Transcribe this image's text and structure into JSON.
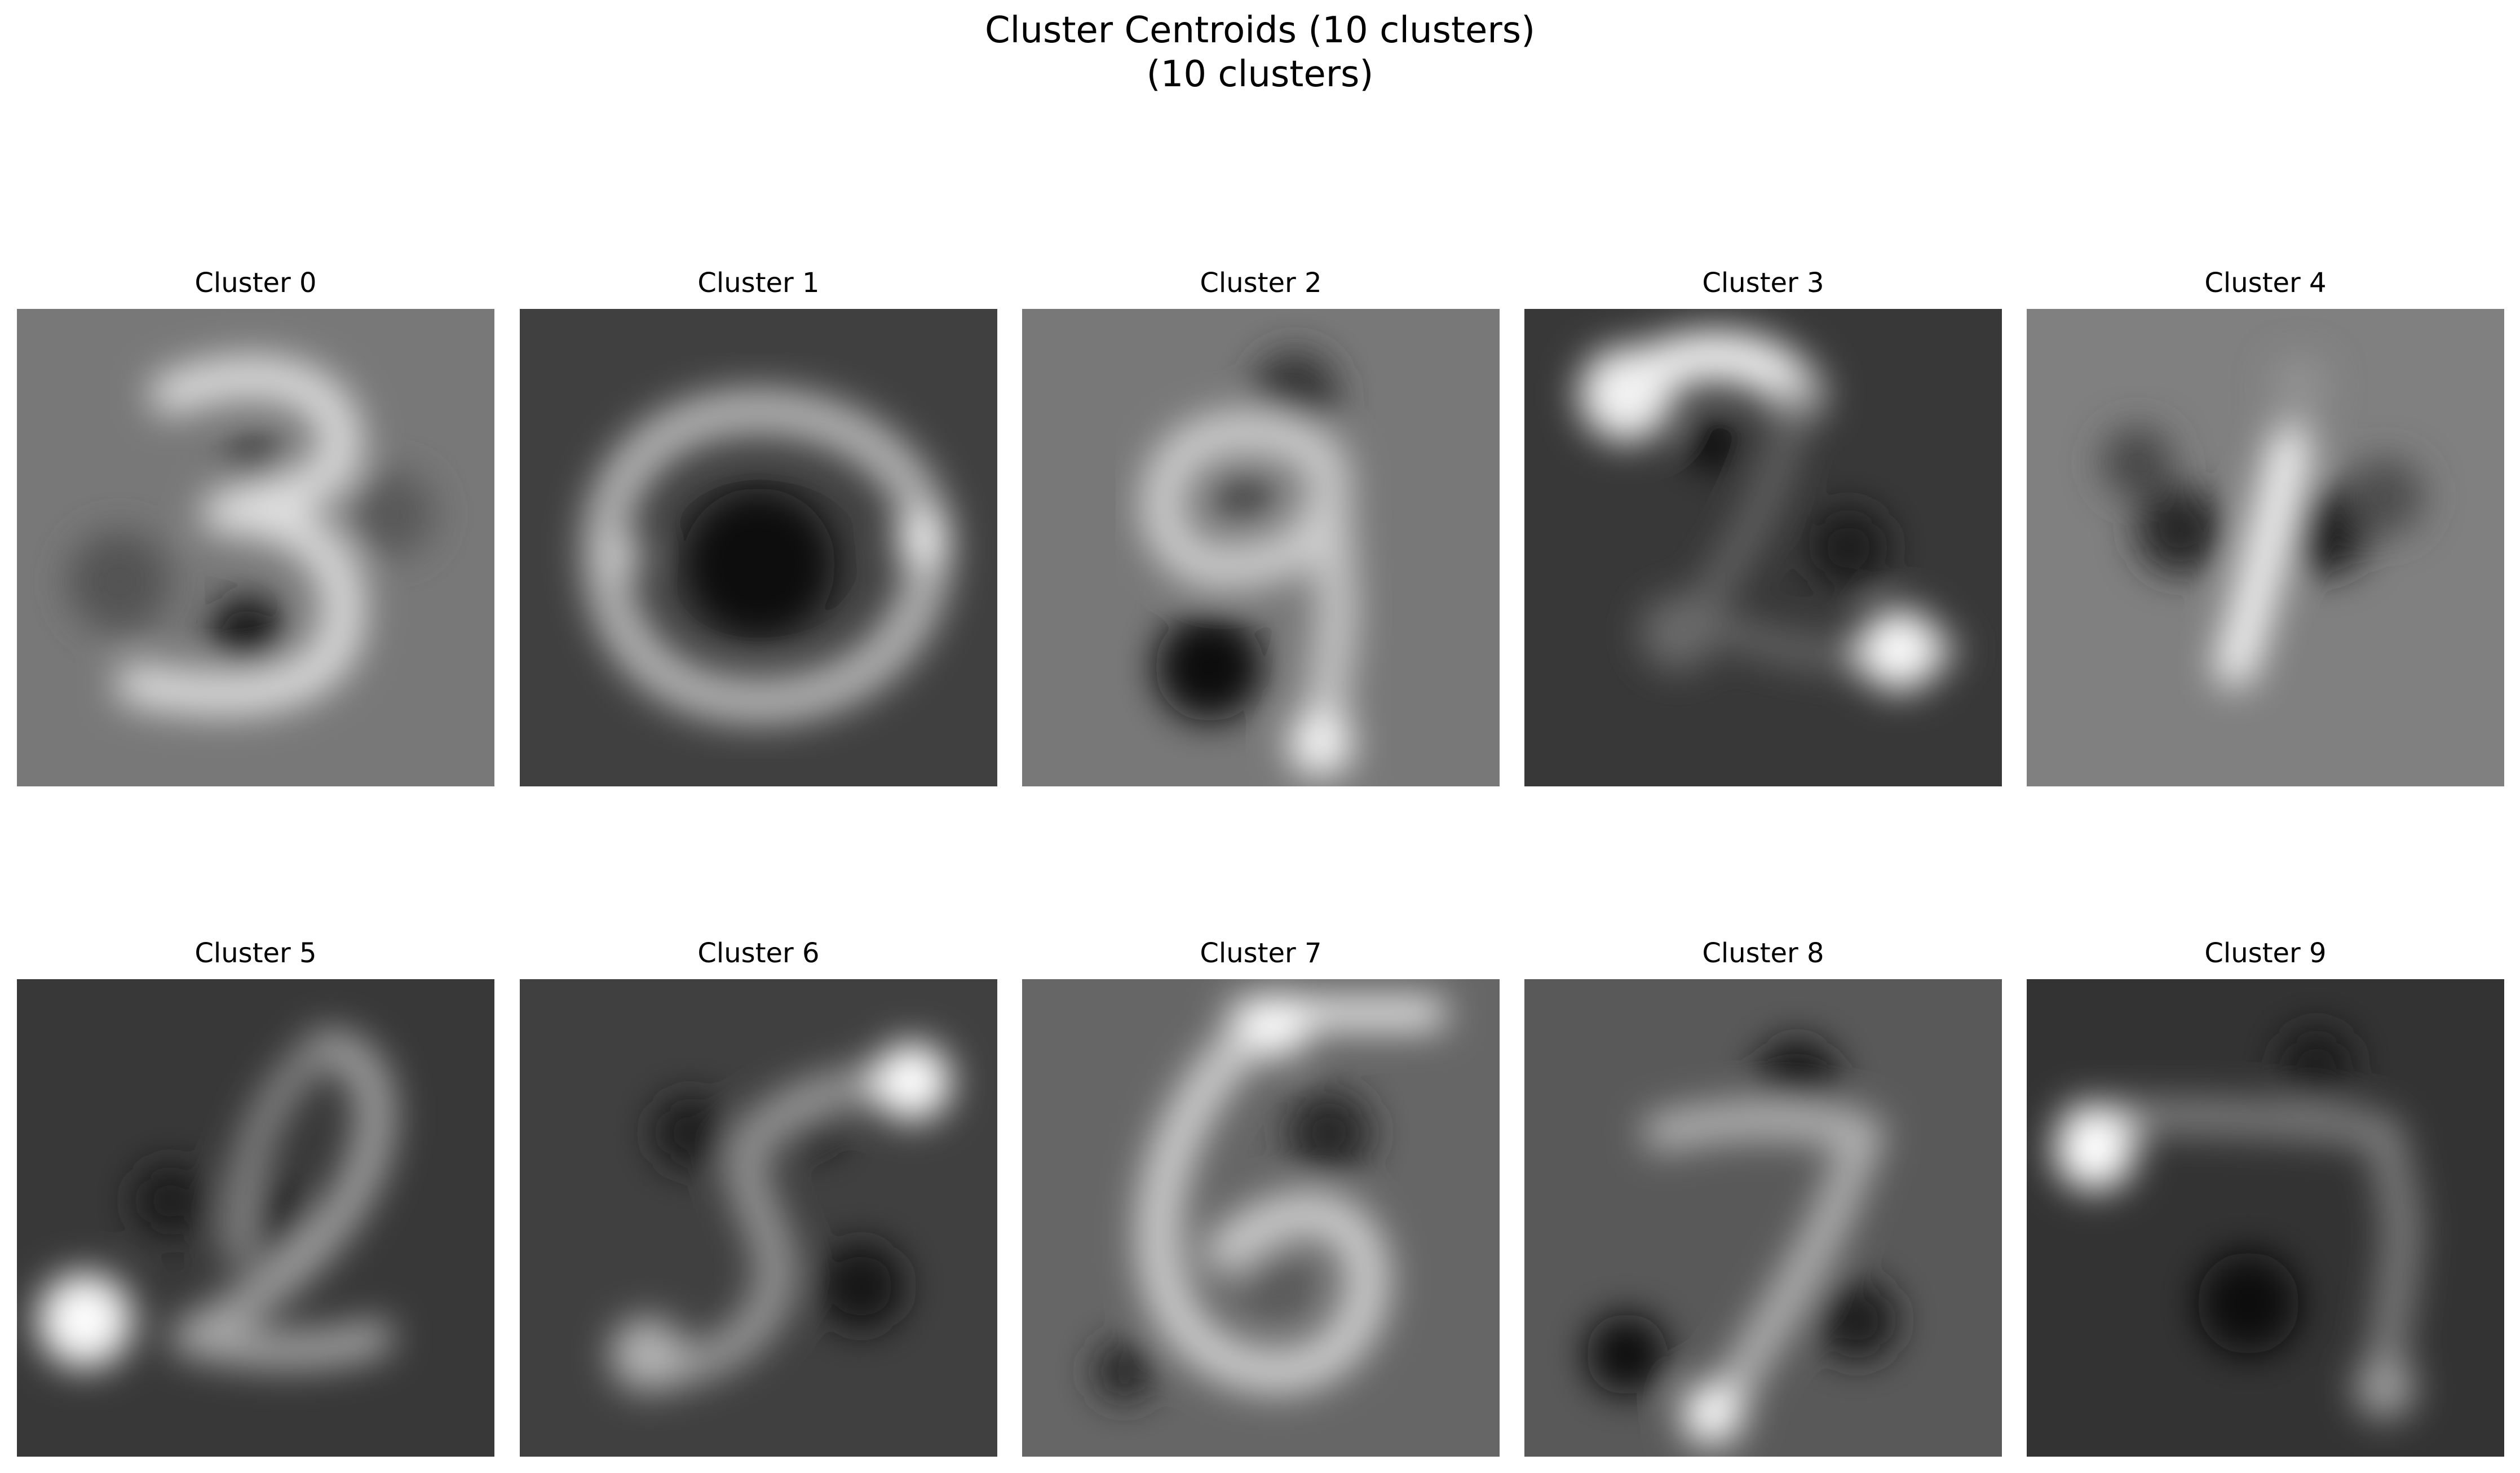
{
  "chart_data": {
    "type": "heatmap",
    "title": "Cluster Centroids (10 clusters)",
    "subtitle": "(10 clusters)",
    "colormap": "gray",
    "grid": false,
    "axes_visible": false,
    "layout": {
      "rows": 2,
      "cols": 5
    },
    "panels": [
      {
        "title": "Cluster 0",
        "background": 0.47,
        "digit": "3"
      },
      {
        "title": "Cluster 1",
        "background": 0.25,
        "digit": "0"
      },
      {
        "title": "Cluster 2",
        "background": 0.47,
        "digit": "9"
      },
      {
        "title": "Cluster 3",
        "background": 0.22,
        "digit": "2"
      },
      {
        "title": "Cluster 4",
        "background": 0.5,
        "digit": "1"
      },
      {
        "title": "Cluster 5",
        "background": 0.22,
        "digit": "2 (slanted)"
      },
      {
        "title": "Cluster 6",
        "background": 0.25,
        "digit": "5 (slanted)"
      },
      {
        "title": "Cluster 7",
        "background": 0.4,
        "digit": "6"
      },
      {
        "title": "Cluster 8",
        "background": 0.35,
        "digit": "7"
      },
      {
        "title": "Cluster 9",
        "background": 0.2,
        "digit": "7 (wide)"
      }
    ]
  }
}
